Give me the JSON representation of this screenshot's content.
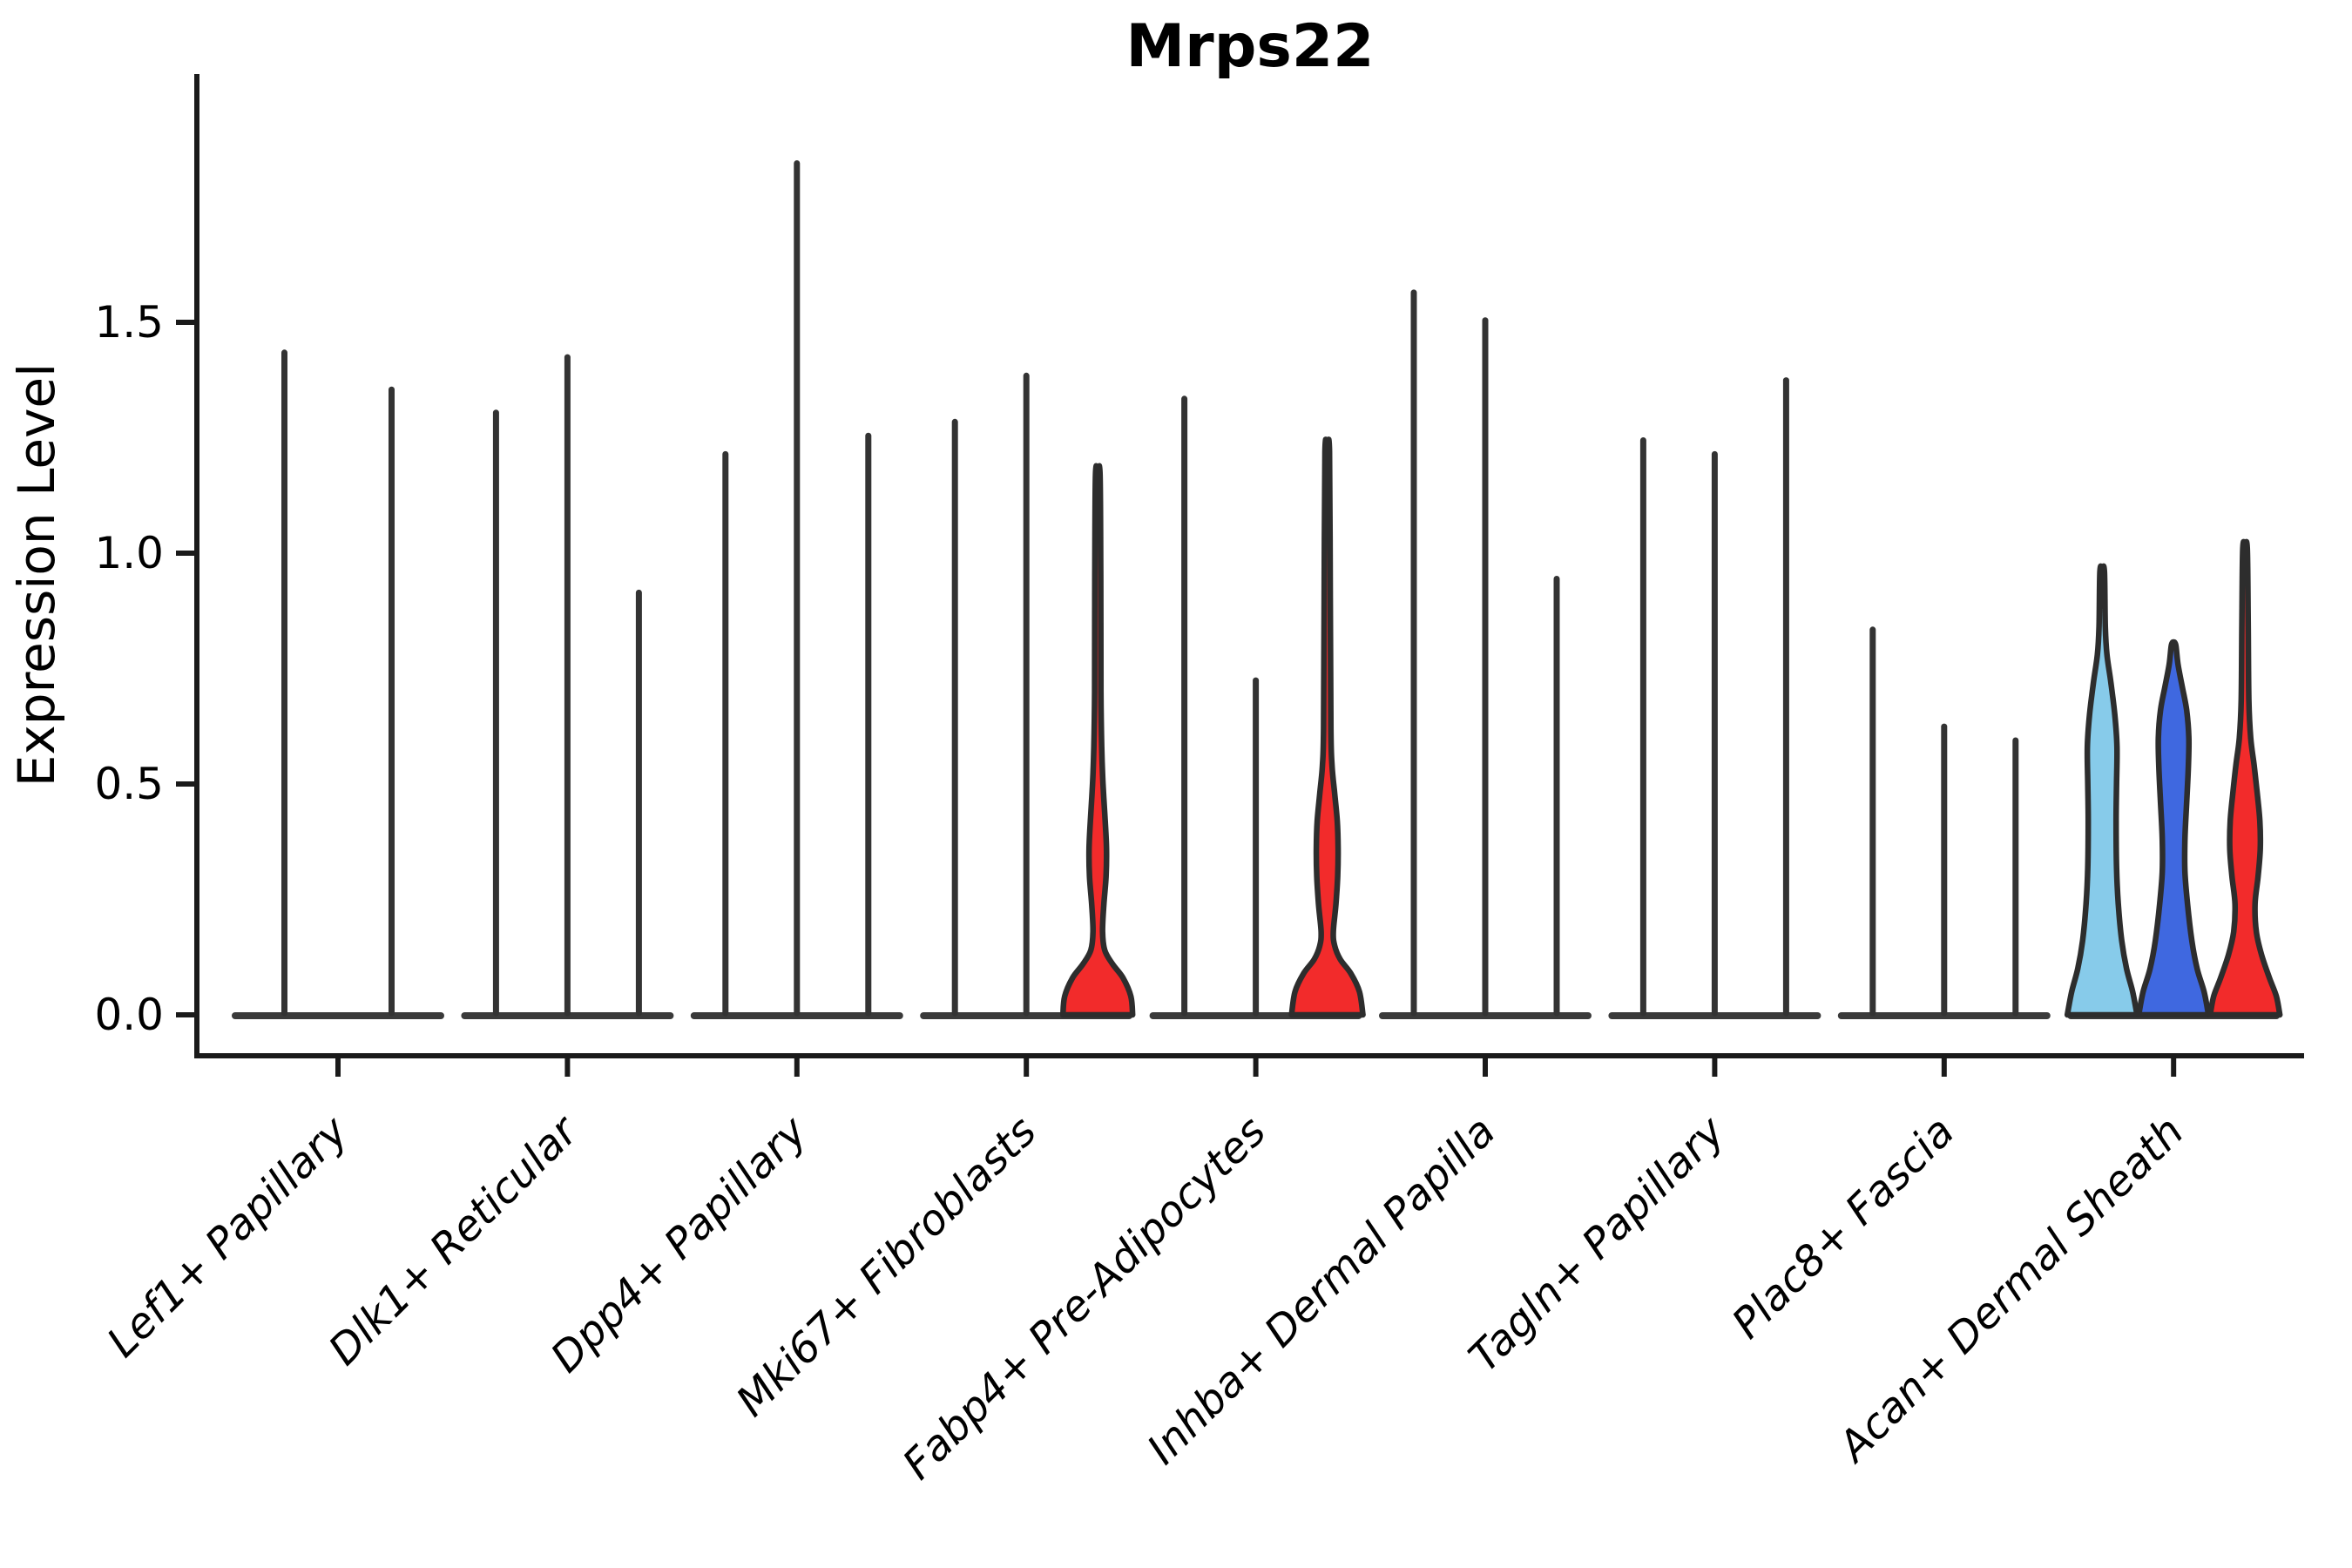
{
  "figure": {
    "title": "Mrps22",
    "ylabel": "Expression Level",
    "xlabel": ""
  },
  "axes": {
    "ytick_labels": [
      "0.0",
      "0.5",
      "1.0",
      "1.5"
    ],
    "yticks": [
      0.0,
      0.5,
      1.0,
      1.5
    ]
  },
  "palette": {
    "spike": "#333333",
    "baseline": "#3a3a3a",
    "outline": "#2d2d2d",
    "axis": "#1a1a1a",
    "skyblue": "#87CBEA",
    "royalblue": "#3F68E0",
    "red": "#F22B2B"
  },
  "chart_data": {
    "type": "violin",
    "title": "Mrps22",
    "xlabel": "",
    "ylabel": "Expression Level",
    "ylim": [
      0,
      2.04
    ],
    "yticks": [
      0.0,
      0.5,
      1.0,
      1.5
    ],
    "grid": false,
    "legend": "none",
    "categories": [
      "Lef1+ Papillary",
      "Dlk1+ Reticular",
      "Dpp4+ Papillary",
      "Mki67+ Fibroblasts",
      "Fabp4+ Pre-Adipocytes",
      "Inhba+ Dermal Papilla",
      "Tagln+ Papillary",
      "Plac8+ Fascia",
      "Acan+ Dermal Sheath"
    ],
    "groups": [
      {
        "category": "Lef1+ Papillary",
        "violins": [
          {
            "max": 1.44,
            "color": "spike",
            "shape": "spike"
          },
          {
            "max": 1.36,
            "color": "spike",
            "shape": "spike"
          }
        ]
      },
      {
        "category": "Dlk1+ Reticular",
        "violins": [
          {
            "max": 1.31,
            "color": "spike",
            "shape": "spike"
          },
          {
            "max": 1.43,
            "color": "spike",
            "shape": "spike"
          },
          {
            "max": 0.92,
            "color": "spike",
            "shape": "spike"
          }
        ]
      },
      {
        "category": "Dpp4+ Papillary",
        "violins": [
          {
            "max": 1.22,
            "color": "spike",
            "shape": "spike"
          },
          {
            "max": 1.85,
            "color": "spike",
            "shape": "spike"
          },
          {
            "max": 1.26,
            "color": "spike",
            "shape": "spike"
          }
        ]
      },
      {
        "category": "Mki67+ Fibroblasts",
        "violins": [
          {
            "max": 1.29,
            "color": "spike",
            "shape": "spike"
          },
          {
            "max": 1.39,
            "color": "spike",
            "shape": "spike"
          },
          {
            "max": 1.17,
            "color": "red",
            "shape": "violin",
            "profile": "mki67_red"
          }
        ]
      },
      {
        "category": "Fabp4+ Pre-Adipocytes",
        "violins": [
          {
            "max": 1.34,
            "color": "spike",
            "shape": "spike"
          },
          {
            "max": 0.73,
            "color": "spike",
            "shape": "spike"
          },
          {
            "max": 1.22,
            "color": "red",
            "shape": "violin",
            "profile": "fabp4_red"
          }
        ]
      },
      {
        "category": "Inhba+ Dermal Papilla",
        "violins": [
          {
            "max": 1.57,
            "color": "spike",
            "shape": "spike"
          },
          {
            "max": 1.51,
            "color": "spike",
            "shape": "spike"
          },
          {
            "max": 0.95,
            "color": "spike",
            "shape": "spike"
          }
        ]
      },
      {
        "category": "Tagln+ Papillary",
        "violins": [
          {
            "max": 1.25,
            "color": "spike",
            "shape": "spike"
          },
          {
            "max": 1.22,
            "color": "spike",
            "shape": "spike"
          },
          {
            "max": 1.38,
            "color": "spike",
            "shape": "spike"
          }
        ]
      },
      {
        "category": "Plac8+ Fascia",
        "violins": [
          {
            "max": 0.84,
            "color": "spike",
            "shape": "spike"
          },
          {
            "max": 0.63,
            "color": "spike",
            "shape": "spike"
          },
          {
            "max": 0.6,
            "color": "spike",
            "shape": "spike"
          }
        ]
      },
      {
        "category": "Acan+ Dermal Sheath",
        "violins": [
          {
            "max": 0.96,
            "color": "skyblue",
            "shape": "violin",
            "profile": "acan_skyblue"
          },
          {
            "max": 0.8,
            "color": "royalblue",
            "shape": "violin",
            "profile": "acan_royalblue"
          },
          {
            "max": 1.01,
            "color": "red",
            "shape": "violin",
            "profile": "acan_red"
          }
        ]
      }
    ],
    "profiles": {
      "mki67_red": [
        [
          0,
          40
        ],
        [
          0.04,
          38
        ],
        [
          0.08,
          29
        ],
        [
          0.11,
          17
        ],
        [
          0.14,
          8
        ],
        [
          0.18,
          5.5
        ],
        [
          0.24,
          7
        ],
        [
          0.3,
          9.5
        ],
        [
          0.36,
          10
        ],
        [
          0.42,
          8.5
        ],
        [
          0.5,
          6
        ],
        [
          0.58,
          4.5
        ],
        [
          0.7,
          3.6
        ],
        [
          0.95,
          3.4
        ],
        [
          1.17,
          2.6
        ]
      ],
      "fabp4_red": [
        [
          0,
          41
        ],
        [
          0.05,
          37
        ],
        [
          0.09,
          27
        ],
        [
          0.12,
          15
        ],
        [
          0.15,
          8.5
        ],
        [
          0.18,
          7
        ],
        [
          0.24,
          10
        ],
        [
          0.3,
          12
        ],
        [
          0.36,
          12.5
        ],
        [
          0.42,
          11.5
        ],
        [
          0.48,
          8.5
        ],
        [
          0.54,
          5.5
        ],
        [
          0.62,
          4.2
        ],
        [
          0.9,
          3.5
        ],
        [
          1.22,
          2.6
        ]
      ],
      "acan_skyblue": [
        [
          0,
          40
        ],
        [
          0.05,
          35
        ],
        [
          0.1,
          28
        ],
        [
          0.16,
          22.5
        ],
        [
          0.24,
          18.5
        ],
        [
          0.32,
          16.5
        ],
        [
          0.42,
          16
        ],
        [
          0.5,
          16.5
        ],
        [
          0.58,
          17
        ],
        [
          0.65,
          14.5
        ],
        [
          0.72,
          10
        ],
        [
          0.78,
          5.5
        ],
        [
          0.84,
          3.6
        ],
        [
          0.96,
          2.6
        ]
      ],
      "acan_royalblue": [
        [
          0,
          40
        ],
        [
          0.05,
          35
        ],
        [
          0.1,
          27
        ],
        [
          0.16,
          21
        ],
        [
          0.24,
          16
        ],
        [
          0.31,
          13
        ],
        [
          0.38,
          13
        ],
        [
          0.46,
          15
        ],
        [
          0.54,
          17
        ],
        [
          0.6,
          17.5
        ],
        [
          0.66,
          15
        ],
        [
          0.71,
          10
        ],
        [
          0.76,
          5
        ],
        [
          0.8,
          2.6
        ]
      ],
      "acan_red": [
        [
          0,
          40
        ],
        [
          0.04,
          36
        ],
        [
          0.08,
          28
        ],
        [
          0.13,
          19
        ],
        [
          0.18,
          13
        ],
        [
          0.24,
          11.5
        ],
        [
          0.3,
          15
        ],
        [
          0.36,
          17.5
        ],
        [
          0.42,
          17
        ],
        [
          0.48,
          14
        ],
        [
          0.54,
          10.5
        ],
        [
          0.6,
          6.5
        ],
        [
          0.68,
          4.4
        ],
        [
          0.85,
          3.6
        ],
        [
          1.01,
          2.6
        ]
      ]
    }
  }
}
